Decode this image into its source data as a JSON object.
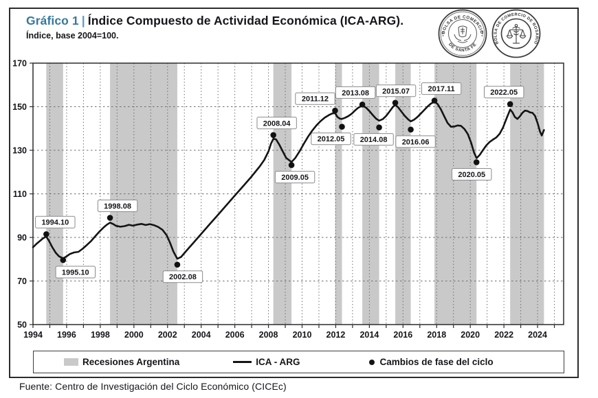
{
  "header": {
    "graphic_label": "Gráfico 1",
    "separator": "|",
    "title": "Índice Compuesto de Actividad Económica (ICA-ARG).",
    "subtitle": "Índice, base 2004=100."
  },
  "logos": {
    "santa_fe": {
      "arc_top": "BOLSA DE COMERCIO",
      "arc_bottom": "DE SANTA FE"
    },
    "rosario": {
      "arc": "BOLSA DE COMERCIO DE ROSARIO"
    }
  },
  "chart_data": {
    "type": "line",
    "title": "Índice Compuesto de Actividad Económica (ICA-ARG)",
    "xlabel": "",
    "ylabel": "Índice, base 2004=100",
    "x_axis": {
      "min": 1994,
      "max": 2025.55,
      "tick_labels": [
        "1994",
        "1996",
        "1998",
        "2000",
        "2002",
        "2004",
        "2006",
        "2008",
        "2010",
        "2012",
        "2014",
        "2016",
        "2018",
        "2020",
        "2022",
        "2024"
      ],
      "label_interval_years": 2,
      "minor_tick_years": 1,
      "grid": "yearly dashed vertical"
    },
    "y_axis": {
      "min": 50,
      "max": 170,
      "ticks": [
        50,
        70,
        90,
        110,
        130,
        150,
        170
      ],
      "grid": "dashed horizontal every 20"
    },
    "colors": {
      "recession_band": "#c9c9c9",
      "line": "#141414",
      "accent_blue": "#35799f"
    },
    "recessions": [
      [
        1994.79,
        1995.79
      ],
      [
        1998.58,
        2002.58
      ],
      [
        2008.29,
        2009.37
      ],
      [
        2011.96,
        2012.37
      ],
      [
        2013.58,
        2014.58
      ],
      [
        2015.54,
        2016.46
      ],
      [
        2017.87,
        2020.37
      ],
      [
        2022.37,
        2024.38
      ]
    ],
    "series": {
      "name": "ICA - ARG",
      "points": [
        [
          1994.0,
          85.5
        ],
        [
          1994.2,
          87.0
        ],
        [
          1994.4,
          88.3
        ],
        [
          1994.6,
          89.6
        ],
        [
          1994.79,
          90.4
        ],
        [
          1994.95,
          88.5
        ],
        [
          1995.15,
          85.5
        ],
        [
          1995.35,
          83.0
        ],
        [
          1995.55,
          81.3
        ],
        [
          1995.79,
          80.4
        ],
        [
          1996.0,
          81.3
        ],
        [
          1996.2,
          82.4
        ],
        [
          1996.45,
          83.1
        ],
        [
          1996.7,
          83.4
        ],
        [
          1996.95,
          84.8
        ],
        [
          1997.2,
          86.5
        ],
        [
          1997.45,
          88.3
        ],
        [
          1997.7,
          90.5
        ],
        [
          1997.95,
          92.7
        ],
        [
          1998.2,
          94.6
        ],
        [
          1998.4,
          95.9
        ],
        [
          1998.58,
          96.8
        ],
        [
          1998.75,
          96.2
        ],
        [
          1998.95,
          95.3
        ],
        [
          1999.2,
          94.9
        ],
        [
          1999.45,
          95.2
        ],
        [
          1999.7,
          95.8
        ],
        [
          1999.95,
          95.4
        ],
        [
          2000.2,
          95.9
        ],
        [
          2000.45,
          96.2
        ],
        [
          2000.7,
          95.7
        ],
        [
          2000.95,
          96.1
        ],
        [
          2001.2,
          95.6
        ],
        [
          2001.45,
          94.8
        ],
        [
          2001.7,
          93.5
        ],
        [
          2001.95,
          91.0
        ],
        [
          2002.15,
          87.5
        ],
        [
          2002.35,
          83.5
        ],
        [
          2002.58,
          80.2
        ],
        [
          2002.8,
          81.0
        ],
        [
          2003.0,
          82.8
        ],
        [
          2003.25,
          85.0
        ],
        [
          2003.5,
          87.2
        ],
        [
          2003.75,
          89.4
        ],
        [
          2004.0,
          91.6
        ],
        [
          2004.25,
          93.8
        ],
        [
          2004.5,
          96.0
        ],
        [
          2004.75,
          98.2
        ],
        [
          2005.0,
          100.4
        ],
        [
          2005.25,
          102.6
        ],
        [
          2005.5,
          104.8
        ],
        [
          2005.75,
          107.0
        ],
        [
          2006.0,
          109.2
        ],
        [
          2006.25,
          111.4
        ],
        [
          2006.5,
          113.6
        ],
        [
          2006.75,
          115.8
        ],
        [
          2007.0,
          118.0
        ],
        [
          2007.25,
          120.4
        ],
        [
          2007.5,
          122.8
        ],
        [
          2007.75,
          125.6
        ],
        [
          2008.0,
          129.5
        ],
        [
          2008.15,
          133.0
        ],
        [
          2008.29,
          135.3
        ],
        [
          2008.45,
          135.0
        ],
        [
          2008.65,
          132.5
        ],
        [
          2008.85,
          129.5
        ],
        [
          2009.05,
          126.5
        ],
        [
          2009.37,
          124.6
        ],
        [
          2009.6,
          126.5
        ],
        [
          2009.85,
          129.5
        ],
        [
          2010.1,
          133.0
        ],
        [
          2010.35,
          136.2
        ],
        [
          2010.6,
          139.0
        ],
        [
          2010.85,
          141.4
        ],
        [
          2011.1,
          143.4
        ],
        [
          2011.35,
          145.0
        ],
        [
          2011.6,
          146.2
        ],
        [
          2011.8,
          146.9
        ],
        [
          2011.96,
          147.1
        ],
        [
          2012.1,
          145.3
        ],
        [
          2012.25,
          144.5
        ],
        [
          2012.37,
          144.4
        ],
        [
          2012.55,
          144.9
        ],
        [
          2012.75,
          145.7
        ],
        [
          2012.95,
          146.8
        ],
        [
          2013.15,
          148.3
        ],
        [
          2013.35,
          149.6
        ],
        [
          2013.58,
          150.5
        ],
        [
          2013.8,
          149.6
        ],
        [
          2014.0,
          148.0
        ],
        [
          2014.2,
          146.2
        ],
        [
          2014.4,
          144.5
        ],
        [
          2014.58,
          143.6
        ],
        [
          2014.8,
          144.3
        ],
        [
          2015.0,
          145.8
        ],
        [
          2015.2,
          147.8
        ],
        [
          2015.4,
          149.9
        ],
        [
          2015.54,
          150.8
        ],
        [
          2015.7,
          149.8
        ],
        [
          2015.9,
          147.8
        ],
        [
          2016.1,
          145.8
        ],
        [
          2016.3,
          144.2
        ],
        [
          2016.46,
          143.3
        ],
        [
          2016.65,
          144.0
        ],
        [
          2016.85,
          145.2
        ],
        [
          2017.05,
          146.8
        ],
        [
          2017.25,
          148.4
        ],
        [
          2017.45,
          150.0
        ],
        [
          2017.65,
          151.4
        ],
        [
          2017.87,
          152.3
        ],
        [
          2018.05,
          151.3
        ],
        [
          2018.25,
          148.8
        ],
        [
          2018.45,
          145.6
        ],
        [
          2018.65,
          142.5
        ],
        [
          2018.85,
          140.8
        ],
        [
          2019.05,
          140.9
        ],
        [
          2019.25,
          141.4
        ],
        [
          2019.45,
          141.2
        ],
        [
          2019.65,
          139.8
        ],
        [
          2019.85,
          137.5
        ],
        [
          2020.05,
          133.5
        ],
        [
          2020.22,
          129.0
        ],
        [
          2020.37,
          126.4
        ],
        [
          2020.55,
          127.8
        ],
        [
          2020.75,
          130.0
        ],
        [
          2020.95,
          132.2
        ],
        [
          2021.15,
          133.8
        ],
        [
          2021.35,
          134.9
        ],
        [
          2021.55,
          135.9
        ],
        [
          2021.75,
          137.6
        ],
        [
          2021.95,
          140.5
        ],
        [
          2022.15,
          144.5
        ],
        [
          2022.37,
          148.7
        ],
        [
          2022.5,
          147.5
        ],
        [
          2022.65,
          145.3
        ],
        [
          2022.8,
          144.4
        ],
        [
          2022.95,
          145.6
        ],
        [
          2023.1,
          147.2
        ],
        [
          2023.25,
          148.2
        ],
        [
          2023.4,
          148.0
        ],
        [
          2023.55,
          147.4
        ],
        [
          2023.7,
          147.2
        ],
        [
          2023.85,
          145.8
        ],
        [
          2024.0,
          142.5
        ],
        [
          2024.15,
          138.5
        ],
        [
          2024.25,
          136.8
        ],
        [
          2024.38,
          139.3
        ]
      ]
    },
    "markers": [
      {
        "label": "1994.10",
        "x": 1994.79,
        "value": 91.5,
        "label_side": "above",
        "label_dx": 13
      },
      {
        "label": "1995.10",
        "x": 1995.79,
        "value": 79.6,
        "label_side": "below",
        "label_dx": 18
      },
      {
        "label": "1998.08",
        "x": 1998.58,
        "value": 99.0,
        "label_side": "above",
        "label_dx": 11
      },
      {
        "label": "2002.08",
        "x": 2002.58,
        "value": 77.5,
        "label_side": "below",
        "label_dx": 8
      },
      {
        "label": "2008.04",
        "x": 2008.29,
        "value": 137.0,
        "label_side": "above",
        "label_dx": 5
      },
      {
        "label": "2009.05",
        "x": 2009.37,
        "value": 123.2,
        "label_side": "below",
        "label_dx": 5
      },
      {
        "label": "2011.12",
        "x": 2011.96,
        "value": 148.2,
        "label_side": "above",
        "label_dx": -29
      },
      {
        "label": "2012.05",
        "x": 2012.37,
        "value": 140.8,
        "label_side": "below",
        "label_dx": -16
      },
      {
        "label": "2013.08",
        "x": 2013.58,
        "value": 151.0,
        "label_side": "above",
        "label_dx": -10
      },
      {
        "label": "2014.08",
        "x": 2014.58,
        "value": 140.5,
        "label_side": "below",
        "label_dx": -8
      },
      {
        "label": "2015.07",
        "x": 2015.54,
        "value": 151.8,
        "label_side": "above",
        "label_dx": 1
      },
      {
        "label": "2016.06",
        "x": 2016.46,
        "value": 139.5,
        "label_side": "below",
        "label_dx": 7
      },
      {
        "label": "2017.11",
        "x": 2017.87,
        "value": 152.8,
        "label_side": "above",
        "label_dx": 10
      },
      {
        "label": "2020.05",
        "x": 2020.37,
        "value": 124.5,
        "label_side": "below",
        "label_dx": -7
      },
      {
        "label": "2022.05",
        "x": 2022.37,
        "value": 151.2,
        "label_side": "above",
        "label_dx": -9
      }
    ]
  },
  "legend": {
    "items": [
      {
        "type": "band",
        "label": "Recesiones Argentina"
      },
      {
        "type": "line",
        "label": "ICA - ARG"
      },
      {
        "type": "dot",
        "label": "Cambios de fase del ciclo"
      }
    ]
  },
  "footer": {
    "source": "Fuente: Centro de Investigación del Ciclo Económico (CICEc)"
  }
}
